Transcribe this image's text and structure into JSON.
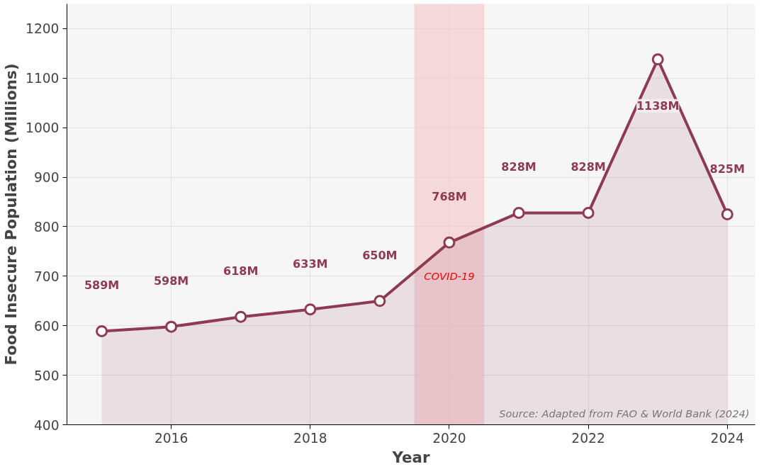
{
  "chart_data": {
    "type": "area",
    "xlabel": "Year",
    "ylabel": "Food Insecure Population (Millions)",
    "x": [
      2015,
      2016,
      2017,
      2018,
      2019,
      2020,
      2021,
      2022,
      2023,
      2024
    ],
    "series": [
      {
        "color": "#8e3b52",
        "values": [
          589,
          598,
          618,
          633,
          650,
          768,
          828,
          828,
          1138,
          825
        ],
        "value_labels": [
          "589M",
          "598M",
          "618M",
          "633M",
          "650M",
          "768M",
          "828M",
          "828M",
          "1138M",
          "825M"
        ]
      }
    ],
    "xlim": [
      2014.5,
      2024.4
    ],
    "ylim": [
      400,
      1250
    ],
    "xticks": [
      2016,
      2018,
      2020,
      2022,
      2024
    ],
    "yticks": [
      400,
      500,
      600,
      700,
      800,
      900,
      1000,
      1100,
      1200
    ],
    "bands": [
      {
        "axis": "x",
        "from": 2019.5,
        "to": 2020.5,
        "label": "COVID-19",
        "color": "#f4c4c8"
      }
    ],
    "annotations": [
      "Source: Adapted from FAO & World Bank (2024)"
    ],
    "grid": true,
    "marker": "circle",
    "line_style": "solid"
  }
}
